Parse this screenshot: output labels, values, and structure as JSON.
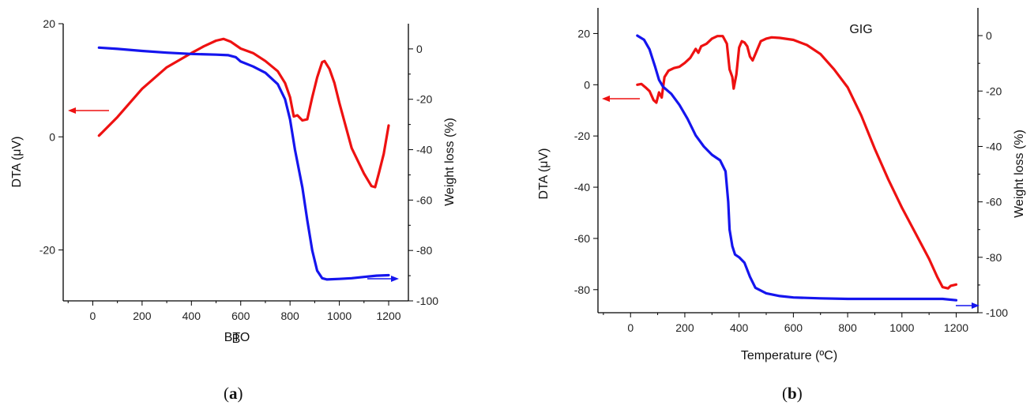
{
  "chart_data": [
    {
      "type": "line",
      "panel_label": "a",
      "title": "BTO",
      "xlabel": "B",
      "ylabel_left": "DTA (μV)",
      "ylabel_right": "Weight loss (%)",
      "xlim": [
        -120,
        1280
      ],
      "ylim_left": [
        -29,
        20
      ],
      "ylim_right": [
        -100,
        10
      ],
      "x_ticks": [
        0,
        200,
        400,
        600,
        800,
        1000,
        1200
      ],
      "y_left_ticks": [
        20,
        0,
        -20
      ],
      "y_right_ticks": [
        0,
        -20,
        -40,
        -60,
        -80,
        -100
      ],
      "series": [
        {
          "axis": "left",
          "color": "#ee1111",
          "x": [
            25,
            100,
            200,
            300,
            400,
            450,
            500,
            530,
            560,
            600,
            650,
            700,
            750,
            780,
            800,
            815,
            830,
            850,
            870,
            890,
            910,
            930,
            940,
            960,
            980,
            1000,
            1050,
            1100,
            1130,
            1145,
            1160,
            1180,
            1200
          ],
          "y": [
            0.2,
            3.5,
            8.5,
            12.3,
            14.8,
            16.0,
            17.0,
            17.3,
            16.8,
            15.6,
            14.8,
            13.4,
            11.6,
            9.5,
            7.0,
            3.6,
            3.8,
            2.9,
            3.1,
            7.0,
            10.5,
            13.2,
            13.4,
            12.0,
            9.5,
            6.0,
            -2.0,
            -6.5,
            -8.7,
            -8.9,
            -6.5,
            -3.0,
            2.0
          ]
        },
        {
          "axis": "right",
          "color": "#1515ee",
          "x": [
            25,
            100,
            200,
            300,
            400,
            500,
            550,
            580,
            600,
            650,
            700,
            750,
            780,
            800,
            820,
            850,
            870,
            890,
            910,
            930,
            950,
            1000,
            1050,
            1100,
            1150,
            1200
          ],
          "y": [
            0.5,
            0.0,
            -0.8,
            -1.5,
            -2.0,
            -2.3,
            -2.5,
            -3.3,
            -5.0,
            -7.0,
            -9.5,
            -14.0,
            -20.0,
            -28.0,
            -40.0,
            -55.0,
            -68.0,
            -80.0,
            -88.0,
            -91.0,
            -91.5,
            -91.3,
            -91.0,
            -90.5,
            -90.0,
            -89.8
          ]
        }
      ]
    },
    {
      "type": "line",
      "panel_label": "b",
      "title": "GIG",
      "xlabel": "Temperature (ºC)",
      "ylabel_left": "DTA (μV)",
      "ylabel_right": "Weight loss (%)",
      "xlim": [
        -120,
        1280
      ],
      "ylim_left": [
        -89,
        30
      ],
      "ylim_right": [
        -100,
        10
      ],
      "x_ticks": [
        0,
        200,
        400,
        600,
        800,
        1000,
        1200
      ],
      "y_left_ticks": [
        20,
        0,
        -20,
        -40,
        -60,
        -80
      ],
      "y_right_ticks": [
        0,
        -20,
        -40,
        -60,
        -80,
        -100
      ],
      "series": [
        {
          "axis": "left",
          "color": "#ee1111",
          "x": [
            25,
            40,
            55,
            70,
            85,
            95,
            105,
            115,
            125,
            140,
            160,
            180,
            200,
            220,
            240,
            250,
            260,
            280,
            300,
            320,
            340,
            355,
            365,
            375,
            380,
            390,
            400,
            410,
            420,
            430,
            440,
            450,
            460,
            480,
            500,
            520,
            550,
            600,
            650,
            700,
            750,
            800,
            850,
            900,
            950,
            1000,
            1050,
            1100,
            1130,
            1150,
            1170,
            1180,
            1200
          ],
          "y": [
            0,
            0.3,
            -1.0,
            -2.5,
            -6.0,
            -7.0,
            -3.0,
            -5.0,
            3.0,
            5.5,
            6.5,
            7.0,
            8.5,
            10.5,
            14.0,
            12.5,
            15.0,
            16.0,
            18.0,
            19.0,
            19.0,
            16.0,
            6.0,
            3.0,
            -1.5,
            4.0,
            14.5,
            17.0,
            16.5,
            15.0,
            11.0,
            9.5,
            12.0,
            17.0,
            18.0,
            18.5,
            18.3,
            17.5,
            15.5,
            12.0,
            6.0,
            -1.0,
            -12.0,
            -25.0,
            -37.0,
            -48.0,
            -58.0,
            -68.0,
            -75.0,
            -79.0,
            -79.5,
            -78.5,
            -78.0
          ]
        },
        {
          "axis": "right",
          "color": "#1515ee",
          "x": [
            25,
            50,
            70,
            90,
            105,
            120,
            150,
            180,
            210,
            240,
            270,
            300,
            330,
            350,
            360,
            365,
            375,
            385,
            400,
            420,
            440,
            460,
            500,
            550,
            600,
            700,
            800,
            900,
            1000,
            1100,
            1150,
            1200
          ],
          "y": [
            0,
            -1.5,
            -5.0,
            -11.0,
            -16.0,
            -18.5,
            -21.0,
            -25.0,
            -30.0,
            -36.0,
            -40.0,
            -43.0,
            -45.0,
            -49.0,
            -60.0,
            -70.0,
            -76.0,
            -79.0,
            -80.0,
            -82.0,
            -87.0,
            -91.0,
            -93.0,
            -94.0,
            -94.5,
            -94.8,
            -95.0,
            -95.0,
            -95.0,
            -95.0,
            -95.0,
            -95.5
          ]
        }
      ]
    }
  ]
}
